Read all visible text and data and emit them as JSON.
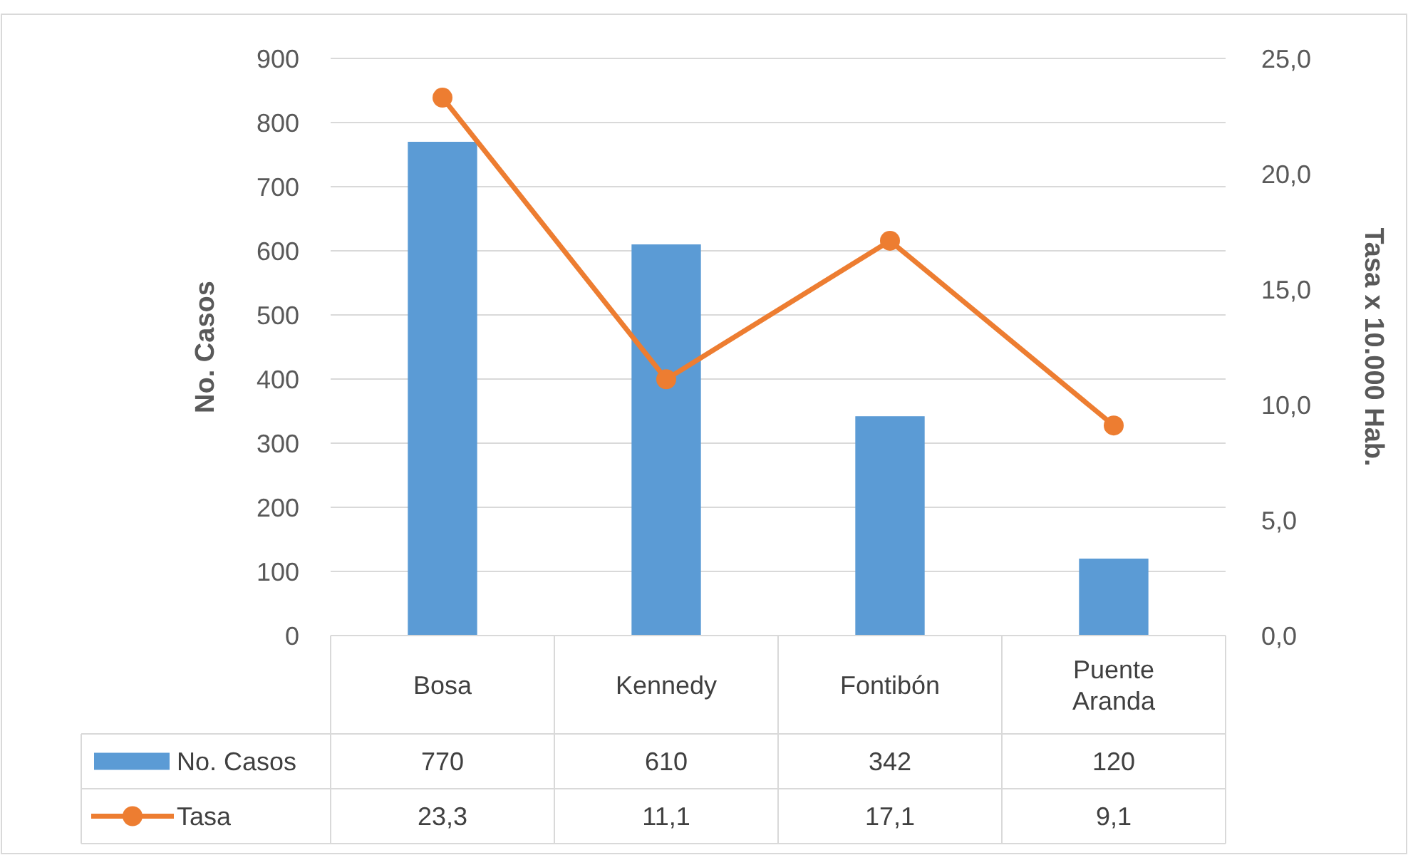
{
  "chart_data": {
    "type": "bar",
    "categories": [
      "Bosa",
      "Kennedy",
      "Fontibón",
      "Puente Aranda"
    ],
    "series": [
      {
        "name": "No. Casos",
        "color": "#5b9bd5",
        "values": [
          770,
          610,
          342,
          120
        ],
        "value_labels": [
          "770",
          "610",
          "342",
          "120"
        ]
      },
      {
        "name": "Tasa",
        "type": "line",
        "axis": "y2",
        "color": "#ed7d31",
        "marker": "circle",
        "values": [
          23.3,
          11.1,
          17.1,
          9.1
        ],
        "value_labels": [
          "23,3",
          "11,1",
          "17,1",
          "9,1"
        ]
      }
    ],
    "ylabel": "No. Casos",
    "y2label": "Tasa x 10.000 Hab.",
    "ylim": [
      0,
      900
    ],
    "yticks": [
      0,
      100,
      200,
      300,
      400,
      500,
      600,
      700,
      800,
      900
    ],
    "y2lim": [
      0,
      25
    ],
    "y2ticks": [
      {
        "value": 0,
        "label": "0,0"
      },
      {
        "value": 5,
        "label": "5,0"
      },
      {
        "value": 10,
        "label": "10,0"
      },
      {
        "value": 15,
        "label": "15,0"
      },
      {
        "value": 20,
        "label": "20,0"
      },
      {
        "value": 25,
        "label": "25,0"
      }
    ],
    "grid": "y",
    "legend": "bottom left"
  }
}
